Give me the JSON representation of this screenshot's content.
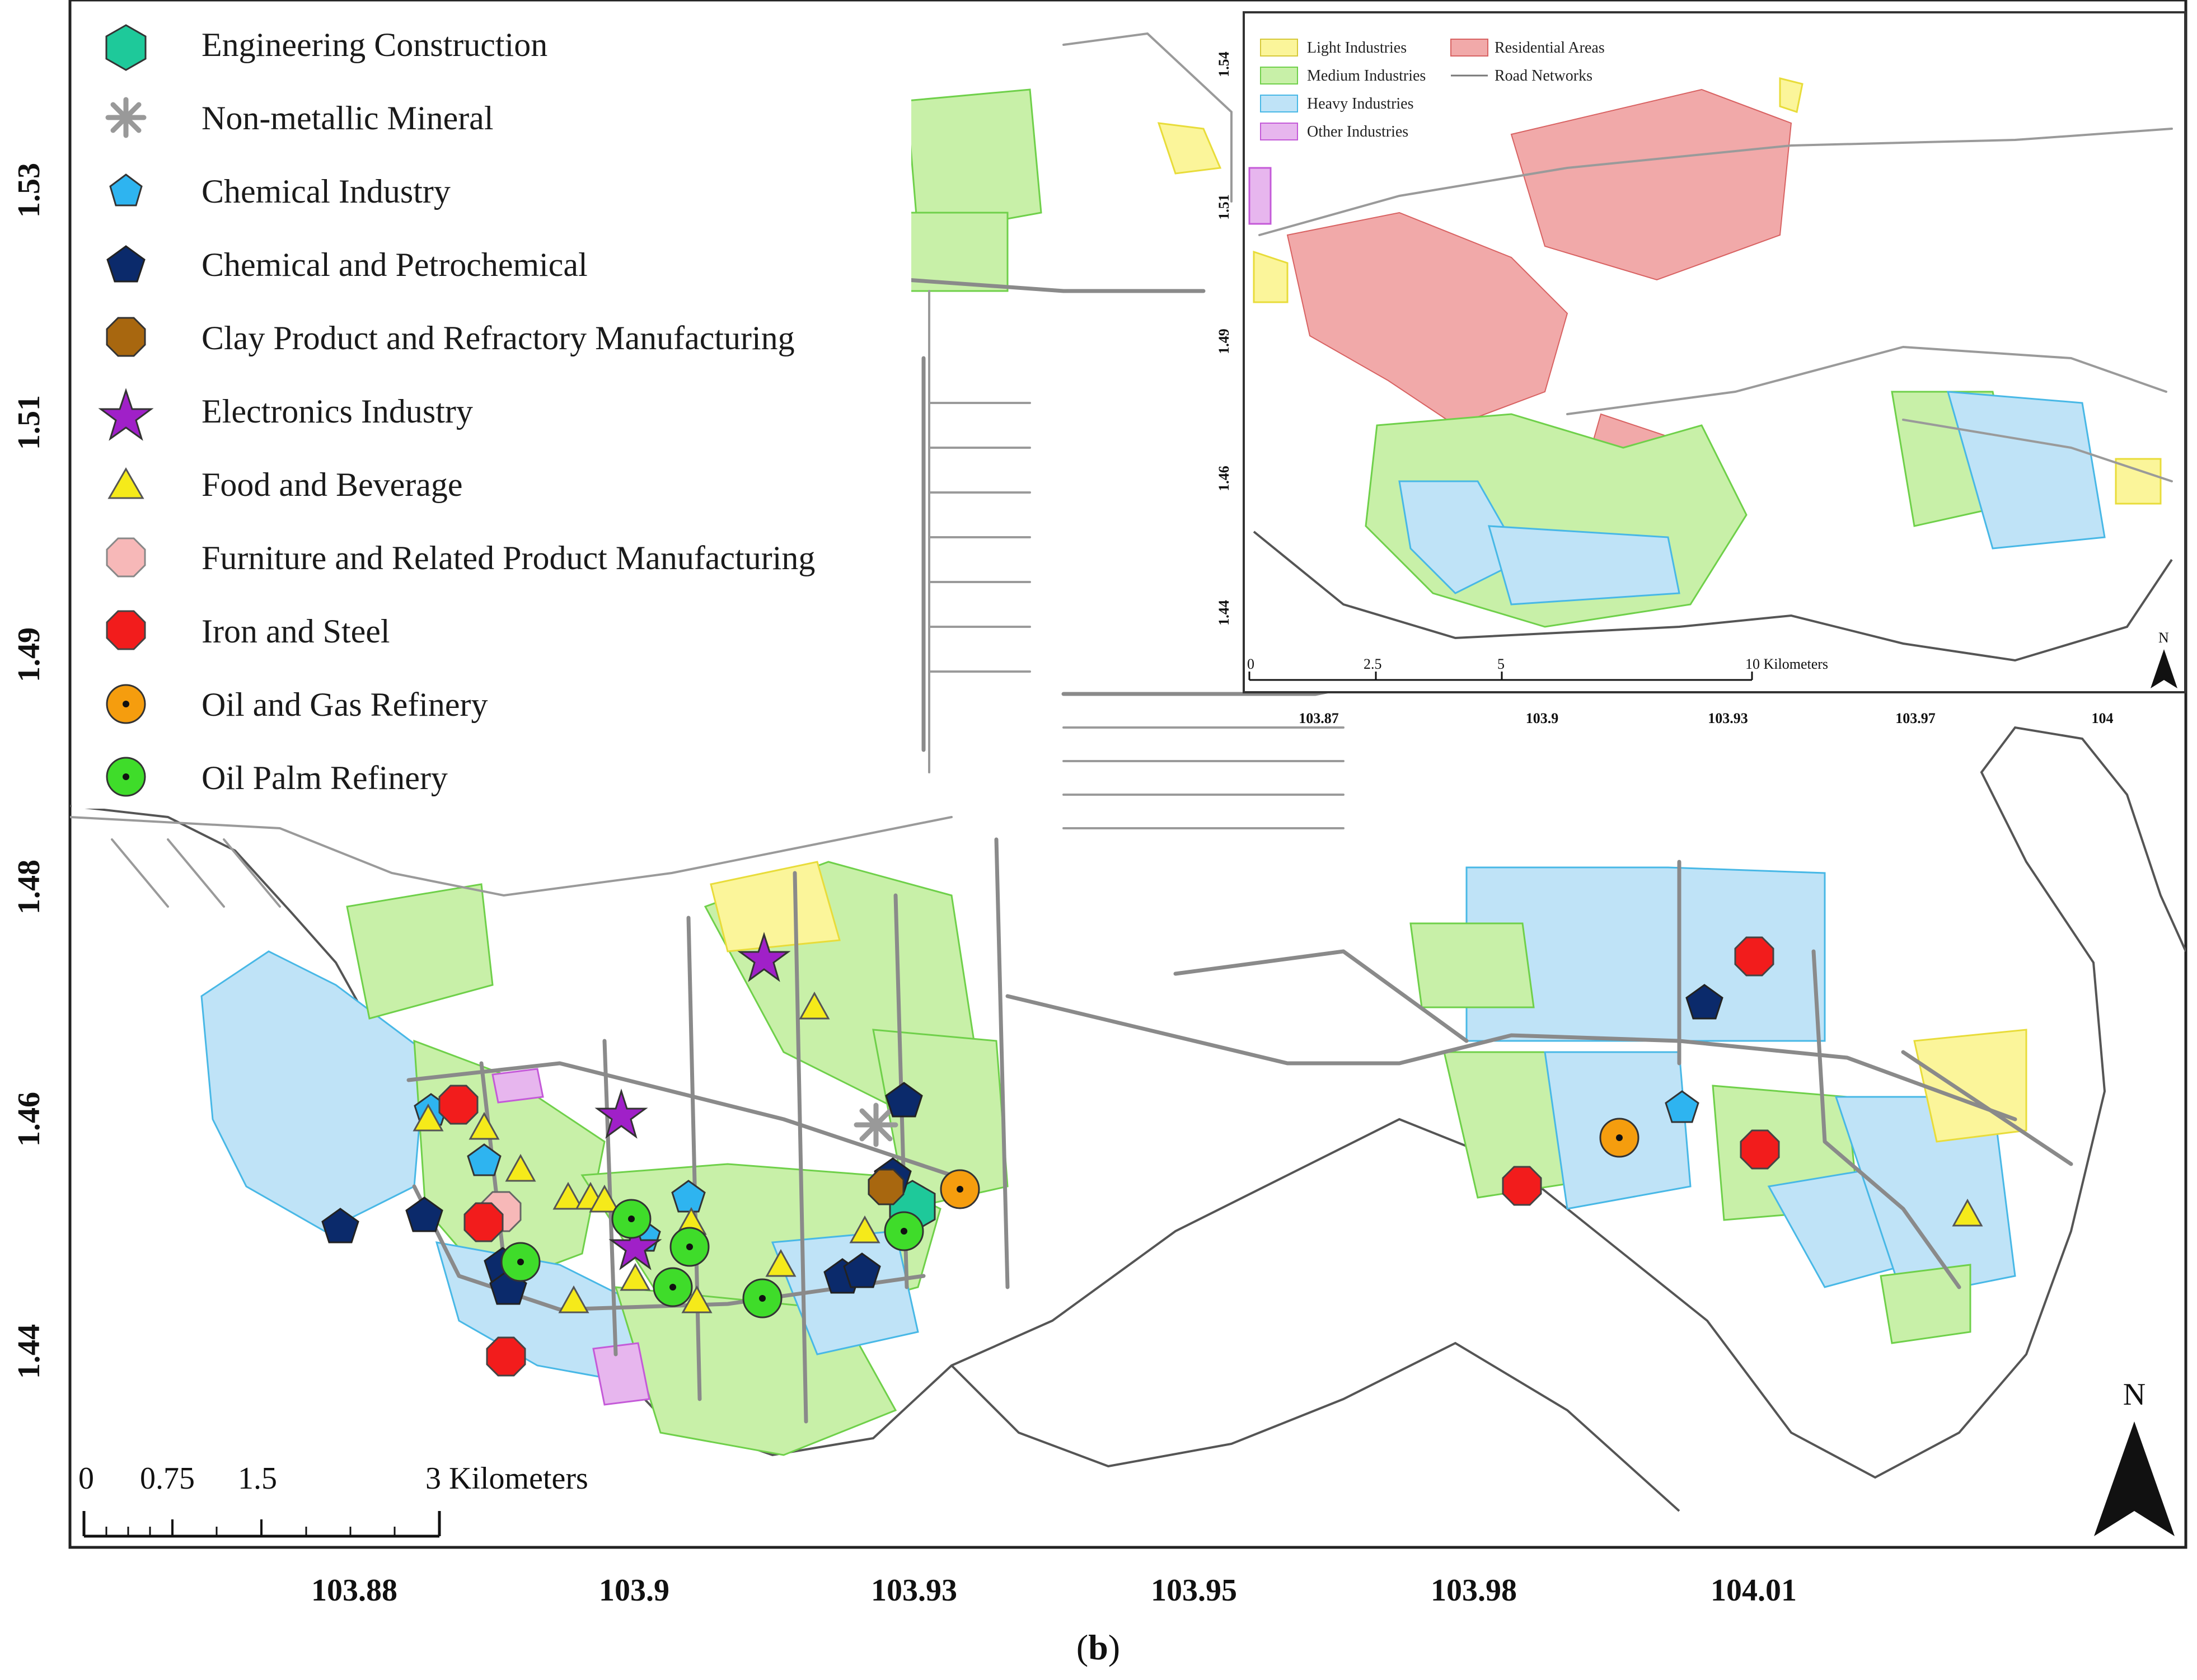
{
  "legend": {
    "items": [
      {
        "label": "Engineering Construction",
        "symbol": "hexagon",
        "color": "#1ec99a"
      },
      {
        "label": "Non-metallic Mineral",
        "symbol": "asterisk",
        "color": "#999999"
      },
      {
        "label": "Chemical Industry",
        "symbol": "pentagon",
        "color": "#2eb4f0"
      },
      {
        "label": "Chemical and Petrochemical",
        "symbol": "pentagon",
        "color": "#0b2a6b"
      },
      {
        "label": "Clay Product and Refractory Manufacturing",
        "symbol": "octagon",
        "color": "#a8670f"
      },
      {
        "label": "Electronics Industry",
        "symbol": "star",
        "color": "#a020c8"
      },
      {
        "label": "Food and Beverage",
        "symbol": "triangle",
        "color": "#f5ea1a"
      },
      {
        "label": "Furniture and Related Product Manufacturing",
        "symbol": "octagon",
        "color": "#f7b8b8"
      },
      {
        "label": "Iron and Steel",
        "symbol": "octagon",
        "color": "#f21c1c"
      },
      {
        "label": "Oil and Gas Refinery",
        "symbol": "dotcircle",
        "color": "#f59d0e"
      },
      {
        "label": "Oil Palm Refinery",
        "symbol": "dotcircle",
        "color": "#3fdc2a"
      }
    ]
  },
  "axes": {
    "x_ticks": [
      "103.88",
      "103.9",
      "103.93",
      "103.95",
      "103.98",
      "104.01"
    ],
    "y_ticks": [
      "1.53",
      "1.51",
      "1.49",
      "1.48",
      "1.46",
      "1.44"
    ]
  },
  "scale_bar": {
    "labels": [
      "0",
      "0.75",
      "1.5",
      "3 Kilometers"
    ]
  },
  "north_label": "N",
  "inset": {
    "legend": [
      {
        "label": "Light Industries",
        "color": "#fbf59a"
      },
      {
        "label": "Residential Areas",
        "color": "#f1a9a9"
      },
      {
        "label": "Medium Industries",
        "color": "#c8f0a8"
      },
      {
        "label": "Road Networks",
        "color": "#777777"
      },
      {
        "label": "Heavy Industries",
        "color": "#bfe3f7"
      },
      {
        "label": "Other Industries",
        "color": "#e7b6ee"
      }
    ],
    "x_ticks": [
      "103.87",
      "103.9",
      "103.93",
      "103.97",
      "104"
    ],
    "y_ticks": [
      "1.54",
      "1.51",
      "1.49",
      "1.46",
      "1.44"
    ],
    "scale_labels": [
      "0",
      "2.5",
      "5",
      "10 Kilometers"
    ],
    "north_label": "N"
  },
  "caption": {
    "open": "(",
    "letter": "b",
    "close": ")"
  }
}
